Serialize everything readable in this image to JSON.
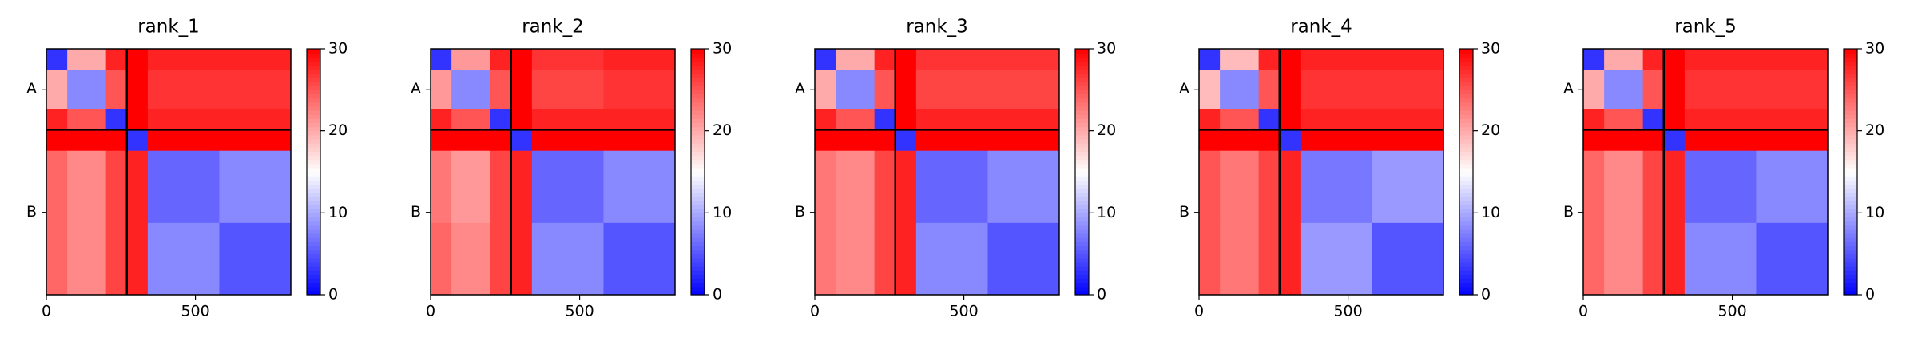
{
  "chart_data": [
    {
      "type": "heatmap",
      "title": "rank_1",
      "colormap": "bwr",
      "x_edges": [
        0,
        70,
        200,
        270,
        340,
        580,
        820
      ],
      "y_edges": [
        0,
        70,
        200,
        270,
        340,
        580,
        820
      ],
      "values": [
        [
          3,
          20,
          28,
          30,
          28,
          28
        ],
        [
          20,
          8,
          25,
          30,
          27,
          27
        ],
        [
          28,
          25,
          3,
          30,
          28,
          28
        ],
        [
          30,
          30,
          30,
          3,
          30,
          30
        ],
        [
          24,
          22,
          26,
          28,
          6,
          8
        ],
        [
          24,
          22,
          26,
          28,
          8,
          5
        ]
      ],
      "boundaries": [
        270
      ],
      "xlim": [
        0,
        820
      ],
      "ylim": [
        820,
        0
      ],
      "xticks": [
        0,
        500
      ],
      "yticks": [
        {
          "value": 135,
          "label": "A"
        },
        {
          "value": 545,
          "label": "B"
        }
      ],
      "clim": [
        0,
        30
      ],
      "cticks": [
        0,
        10,
        20,
        30
      ]
    },
    {
      "type": "heatmap",
      "title": "rank_2",
      "colormap": "bwr",
      "x_edges": [
        0,
        70,
        200,
        270,
        340,
        580,
        820
      ],
      "y_edges": [
        0,
        70,
        200,
        270,
        340,
        580,
        820
      ],
      "values": [
        [
          3,
          21,
          28,
          30,
          27,
          28
        ],
        [
          21,
          8,
          25,
          30,
          26,
          27
        ],
        [
          28,
          25,
          3,
          30,
          28,
          28
        ],
        [
          30,
          30,
          30,
          3,
          30,
          30
        ],
        [
          23,
          21,
          26,
          28,
          6,
          8
        ],
        [
          24,
          22,
          26,
          28,
          8,
          5
        ]
      ],
      "boundaries": [
        270
      ],
      "xlim": [
        0,
        820
      ],
      "ylim": [
        820,
        0
      ],
      "xticks": [
        0,
        500
      ],
      "yticks": [
        {
          "value": 135,
          "label": "A"
        },
        {
          "value": 545,
          "label": "B"
        }
      ],
      "clim": [
        0,
        30
      ],
      "cticks": [
        0,
        10,
        20,
        30
      ]
    },
    {
      "type": "heatmap",
      "title": "rank_3",
      "colormap": "bwr",
      "x_edges": [
        0,
        70,
        200,
        270,
        340,
        580,
        820
      ],
      "y_edges": [
        0,
        70,
        200,
        270,
        340,
        580,
        820
      ],
      "values": [
        [
          3,
          20,
          28,
          30,
          27,
          27
        ],
        [
          20,
          8,
          25,
          30,
          26,
          26
        ],
        [
          28,
          25,
          3,
          30,
          28,
          28
        ],
        [
          30,
          30,
          30,
          3,
          30,
          30
        ],
        [
          23,
          22,
          26,
          28,
          6,
          8
        ],
        [
          23,
          22,
          26,
          28,
          8,
          5
        ]
      ],
      "boundaries": [
        270
      ],
      "xlim": [
        0,
        820
      ],
      "ylim": [
        820,
        0
      ],
      "xticks": [
        0,
        500
      ],
      "yticks": [
        {
          "value": 135,
          "label": "A"
        },
        {
          "value": 545,
          "label": "B"
        }
      ],
      "clim": [
        0,
        30
      ],
      "cticks": [
        0,
        10,
        20,
        30
      ]
    },
    {
      "type": "heatmap",
      "title": "rank_4",
      "colormap": "bwr",
      "x_edges": [
        0,
        70,
        200,
        270,
        340,
        580,
        820
      ],
      "y_edges": [
        0,
        70,
        200,
        270,
        340,
        580,
        820
      ],
      "values": [
        [
          3,
          19,
          28,
          30,
          28,
          28
        ],
        [
          19,
          8,
          25,
          30,
          27,
          27
        ],
        [
          28,
          25,
          3,
          30,
          28,
          28
        ],
        [
          30,
          30,
          30,
          3,
          30,
          30
        ],
        [
          25,
          23,
          26,
          28,
          7,
          9
        ],
        [
          25,
          23,
          26,
          28,
          9,
          5
        ]
      ],
      "boundaries": [
        270
      ],
      "xlim": [
        0,
        820
      ],
      "ylim": [
        820,
        0
      ],
      "xticks": [
        0,
        500
      ],
      "yticks": [
        {
          "value": 135,
          "label": "A"
        },
        {
          "value": 545,
          "label": "B"
        }
      ],
      "clim": [
        0,
        30
      ],
      "cticks": [
        0,
        10,
        20,
        30
      ]
    },
    {
      "type": "heatmap",
      "title": "rank_5",
      "colormap": "bwr",
      "x_edges": [
        0,
        70,
        200,
        270,
        340,
        580,
        820
      ],
      "y_edges": [
        0,
        70,
        200,
        270,
        340,
        580,
        820
      ],
      "values": [
        [
          3,
          20,
          28,
          30,
          28,
          28
        ],
        [
          20,
          8,
          25,
          30,
          27,
          27
        ],
        [
          28,
          25,
          3,
          30,
          28,
          28
        ],
        [
          30,
          30,
          30,
          3,
          30,
          30
        ],
        [
          24,
          22,
          26,
          28,
          6,
          8
        ],
        [
          24,
          22,
          26,
          28,
          8,
          5
        ]
      ],
      "boundaries": [
        270
      ],
      "xlim": [
        0,
        820
      ],
      "ylim": [
        820,
        0
      ],
      "xticks": [
        0,
        500
      ],
      "yticks": [
        {
          "value": 135,
          "label": "A"
        },
        {
          "value": 545,
          "label": "B"
        }
      ],
      "clim": [
        0,
        30
      ],
      "cticks": [
        0,
        10,
        20,
        30
      ]
    }
  ]
}
